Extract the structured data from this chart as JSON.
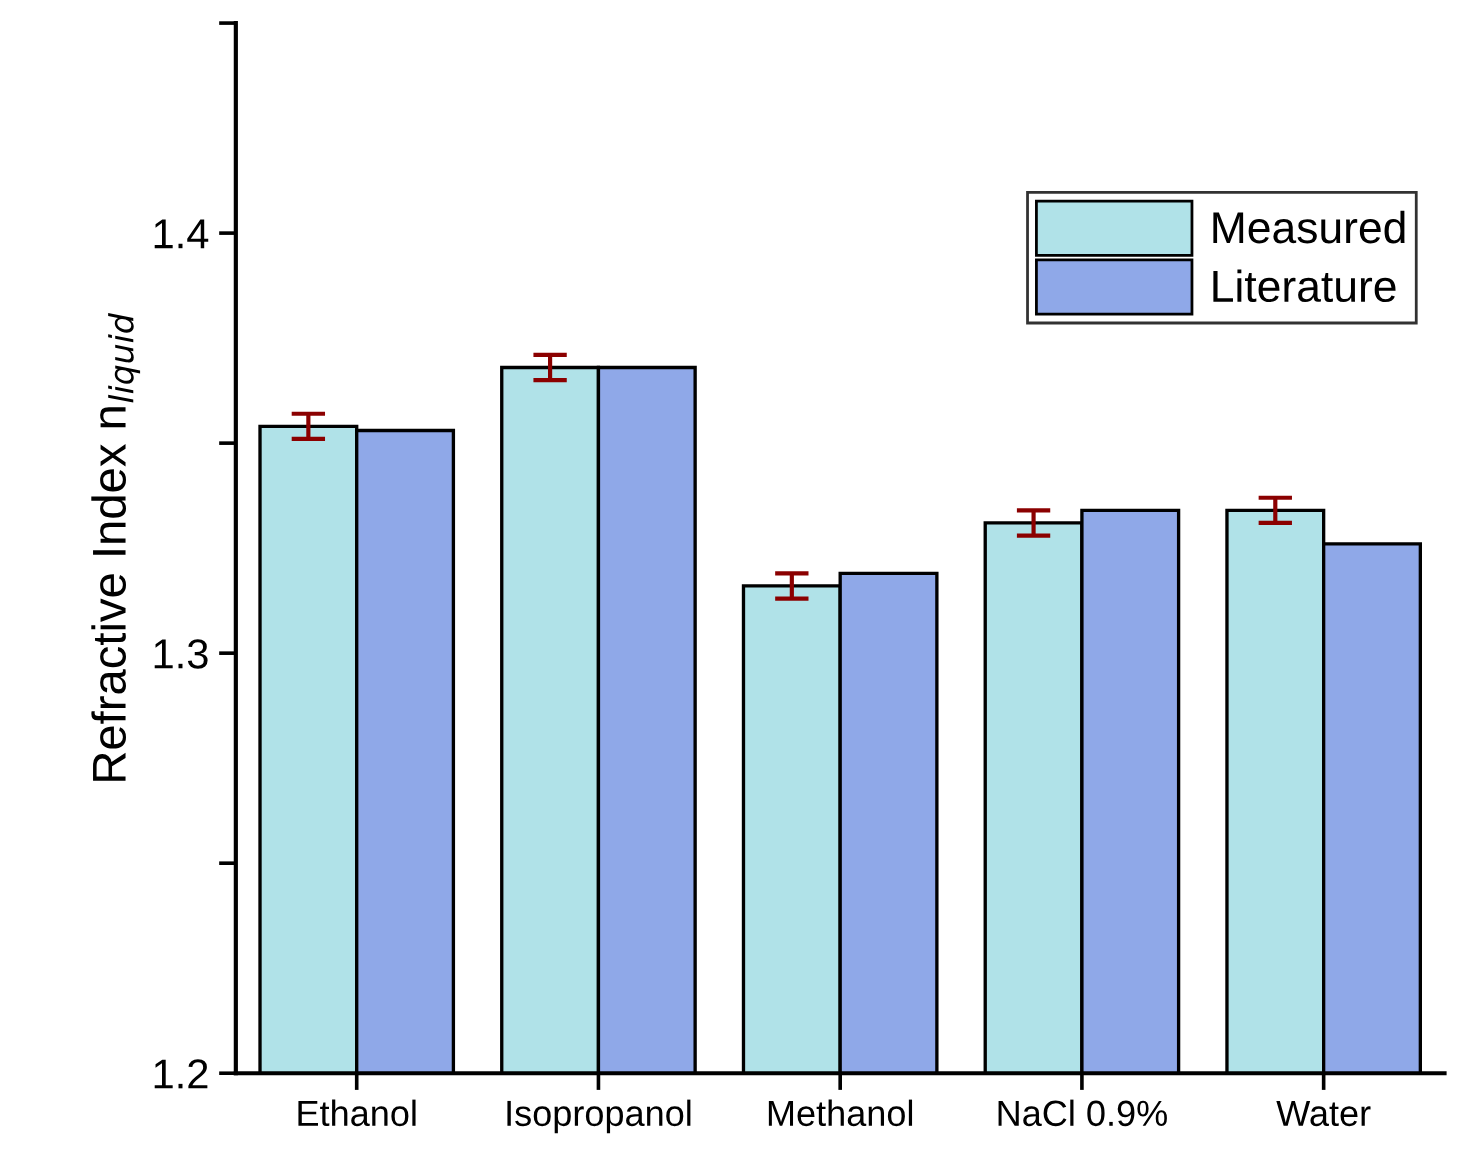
{
  "chart_data": {
    "type": "bar",
    "ylabel": "Refractive Index n$_{liquid}$",
    "categories": [
      "Ethanol",
      "Isopropanol",
      "Methanol",
      "NaCl 0.9%",
      "Water"
    ],
    "series": [
      {
        "name": "Measured",
        "color": "#b0e2e8",
        "values": [
          1.354,
          1.368,
          1.316,
          1.331,
          1.334
        ],
        "errors": [
          0.003,
          0.003,
          0.003,
          0.003,
          0.003
        ]
      },
      {
        "name": "Literature",
        "color": "#8fa8e8",
        "values": [
          1.353,
          1.368,
          1.319,
          1.334,
          1.326
        ]
      }
    ],
    "ylim": [
      1.2,
      1.45
    ],
    "yticks": [
      1.2,
      {
        "value": 1.25,
        "label": null
      },
      1.3,
      {
        "value": 1.35,
        "label": null
      },
      1.4,
      {
        "value": 1.45,
        "label": null
      }
    ],
    "grid": false,
    "legend": "top right"
  }
}
